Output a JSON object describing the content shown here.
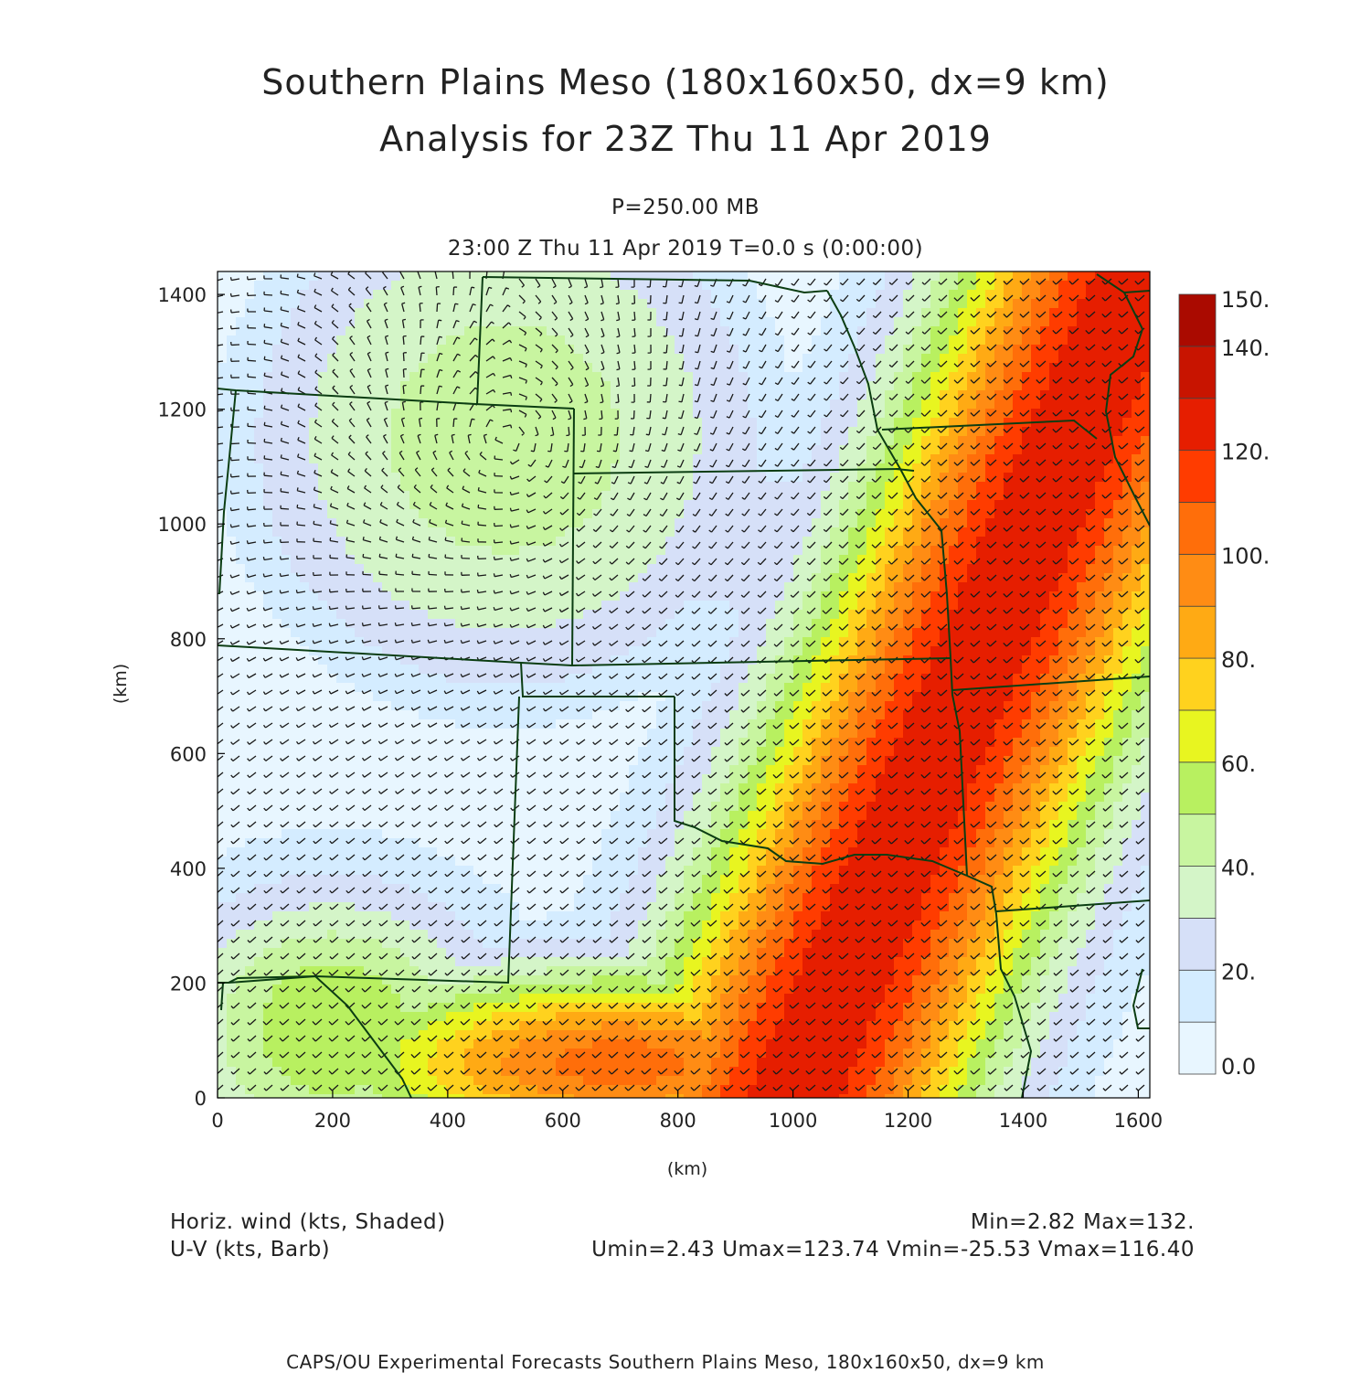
{
  "title": {
    "line1": "Southern Plains Meso (180x160x50, dx=9 km)",
    "line2": "Analysis for 23Z Thu 11 Apr 2019"
  },
  "subtitle": {
    "level": "P=250.00 MB",
    "time": "23:00 Z Thu 11 Apr 2019    T=0.0 s (0:00:00)"
  },
  "axes": {
    "xlabel": "(km)",
    "ylabel": "(km)",
    "xticks": [
      "0",
      "200",
      "400",
      "600",
      "800",
      "1000",
      "1200",
      "1400",
      "1600"
    ],
    "yticks": [
      "0",
      "200",
      "400",
      "600",
      "800",
      "1000",
      "1200",
      "1400"
    ],
    "xlim": [
      0,
      1620
    ],
    "ylim": [
      0,
      1440
    ]
  },
  "colorbar": {
    "labels": [
      "0.0",
      "20.",
      "40.",
      "60.",
      "80.",
      "100.",
      "120.",
      "140.",
      "150."
    ],
    "levels": [
      0,
      10,
      20,
      30,
      40,
      50,
      60,
      70,
      80,
      90,
      100,
      110,
      120,
      130,
      140,
      150
    ],
    "colors": [
      "#e8f6ff",
      "#d4ecff",
      "#d6e0f8",
      "#d4f5c8",
      "#c8f5a0",
      "#b8f060",
      "#e8f520",
      "#ffd21e",
      "#ffaa14",
      "#ff8c14",
      "#ff6e0a",
      "#ff3c00",
      "#e61e00",
      "#c81400",
      "#aa0a00"
    ]
  },
  "footer": {
    "field1": "Horiz. wind (kts, Shaded)",
    "field2": "U-V (kts, Barb)",
    "stats1": "Min=2.82 Max=132.",
    "stats2": "Umin=2.43 Umax=123.74 Vmin=-25.53 Vmax=116.40",
    "credit": "CAPS/OU Experimental Forecasts  Southern Plains Meso, 180x160x50, dx=9 km"
  }
}
